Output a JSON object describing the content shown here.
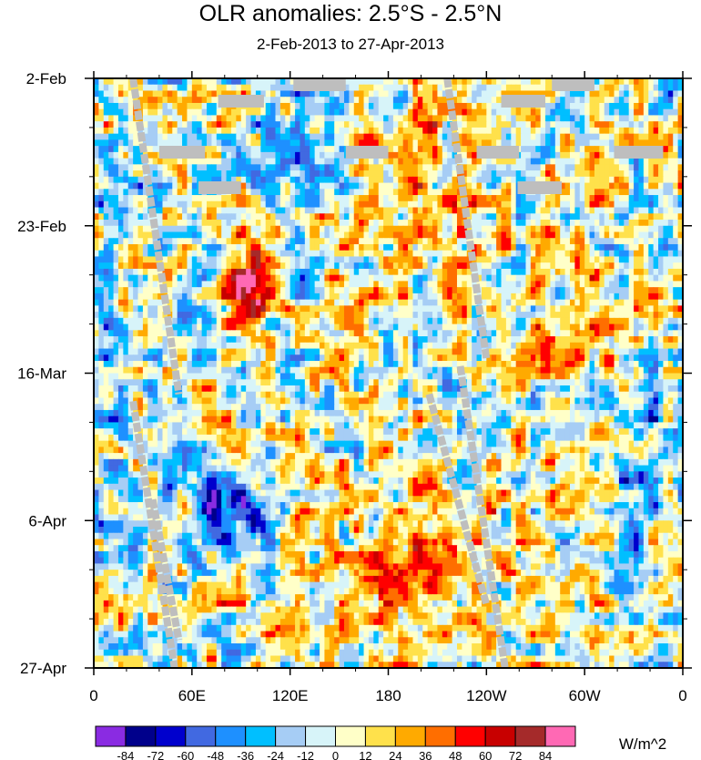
{
  "title": "OLR anomalies: 2.5°S - 2.5°N",
  "subtitle": "2-Feb-2013 to 27-Apr-2013",
  "chart_data": {
    "type": "heatmap",
    "title": "OLR anomalies: 2.5°S - 2.5°N",
    "subtitle": "2-Feb-2013 to 27-Apr-2013",
    "x_axis": {
      "tick_labels": [
        "0",
        "60E",
        "120E",
        "180",
        "120W",
        "60W",
        "0"
      ],
      "tick_values_deg_east": [
        0,
        60,
        120,
        180,
        240,
        300,
        360
      ],
      "range_deg_east": [
        0,
        360
      ]
    },
    "y_axis": {
      "tick_labels": [
        "2-Feb",
        "23-Feb",
        "16-Mar",
        "6-Apr",
        "27-Apr"
      ],
      "tick_values": [
        "2013-02-02",
        "2013-02-23",
        "2013-03-16",
        "2013-04-06",
        "2013-04-27"
      ],
      "range": [
        "2013-02-02",
        "2013-04-27"
      ],
      "direction": "time increases downward"
    },
    "colorbar": {
      "units": "W/m^2",
      "levels": [
        -84,
        -72,
        -60,
        -48,
        -36,
        -24,
        -12,
        0,
        12,
        24,
        36,
        48,
        60,
        72,
        84
      ],
      "colors": [
        "#8a2be2",
        "#00008b",
        "#0000cd",
        "#4169e1",
        "#1e90ff",
        "#00bfff",
        "#a6cdf5",
        "#d7f4f9",
        "#ffffc8",
        "#ffe14b",
        "#ffaa00",
        "#ff6e00",
        "#ff0000",
        "#c80000",
        "#a52a2a",
        "#ff69b4"
      ]
    },
    "features": [
      {
        "description": "strong positive anomaly (48 to 72 W/m^2)",
        "lon_range_deg_east": [
          80,
          105
        ],
        "date_range": [
          "2013-03-02",
          "2013-03-15"
        ]
      },
      {
        "description": "strong negative anomaly (-84 to -60 W/m^2)",
        "lon_range_deg_east": [
          65,
          105
        ],
        "date_range": [
          "2013-03-30",
          "2013-04-06"
        ]
      },
      {
        "description": "broad positive anomaly (12 to 36 W/m^2)",
        "lon_range_deg_east": [
          170,
          240
        ],
        "date_range": [
          "2013-02-09",
          "2013-03-02"
        ]
      },
      {
        "description": "broad positive anomaly (12 to 48 W/m^2)",
        "lon_range_deg_east": [
          140,
          260
        ],
        "date_range": [
          "2013-03-30",
          "2013-04-20"
        ]
      }
    ],
    "missing_data_fill": "#bebebe"
  }
}
